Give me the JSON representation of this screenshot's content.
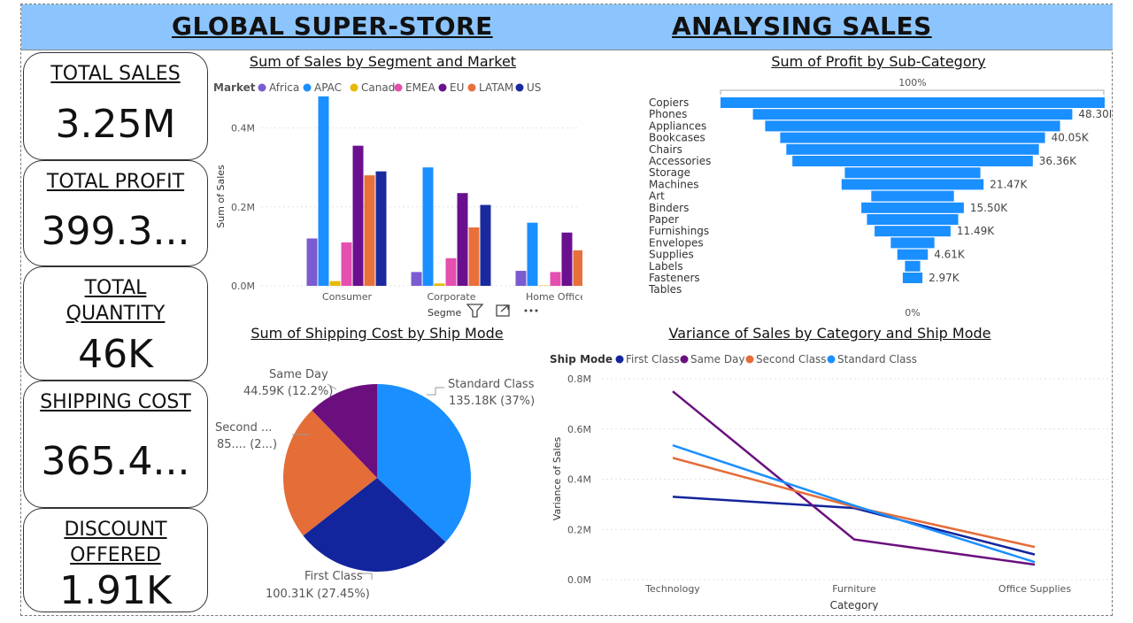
{
  "header": {
    "left_title": "GLOBAL SUPER-STORE ",
    "right_title": " ANALYSING SALES "
  },
  "kpis": [
    {
      "label": "TOTAL SALES",
      "value": "3.25M"
    },
    {
      "label": "TOTAL PROFIT",
      "value": "399.3..."
    },
    {
      "label": "TOTAL QUANTITY",
      "value": "46K"
    },
    {
      "label": "SHIPPING COST",
      "value": "365.4..."
    },
    {
      "label": "DISCOUNT OFFERED",
      "value": "1.91K"
    }
  ],
  "colors": {
    "header_bg": "#8cc5fe",
    "Africa": "#7b5bd0",
    "APAC": "#1a8fff",
    "Canada": "#e6b800",
    "EMEA": "#e44fb0",
    "EU": "#6a0f8e",
    "LATAM": "#e8703a",
    "US": "#1a2a9c"
  },
  "visual_header_icons": [
    "filter-icon",
    "focus-mode-icon",
    "more-options-icon"
  ],
  "chart_data": [
    {
      "type": "bar",
      "title": "Sum of Sales by Segment and Market",
      "xlabel": "Segme",
      "ylabel": "Sum of Sales",
      "legend_title": "Market",
      "legend_position": "top-left",
      "categories": [
        "Consumer",
        "Corporate",
        "Home Office"
      ],
      "yticks": [
        "0.0M",
        "0.2M",
        "0.4M"
      ],
      "ylim": [
        0,
        0.5
      ],
      "series": [
        {
          "name": "Africa",
          "color": "#7b5bd0",
          "values": [
            0.12,
            0.035,
            0.038
          ]
        },
        {
          "name": "APAC",
          "color": "#1a8fff",
          "values": [
            0.48,
            0.3,
            0.16
          ]
        },
        {
          "name": "Canada",
          "color": "#e6b800",
          "values": [
            0.012,
            0.006,
            0.001
          ]
        },
        {
          "name": "EMEA",
          "color": "#e44fb0",
          "values": [
            0.11,
            0.07,
            0.035
          ]
        },
        {
          "name": "EU",
          "color": "#6a0f8e",
          "values": [
            0.355,
            0.235,
            0.135
          ]
        },
        {
          "name": "LATAM",
          "color": "#e8703a",
          "values": [
            0.28,
            0.148,
            0.09
          ]
        },
        {
          "name": "US",
          "color": "#1a2a9c",
          "values": [
            0.29,
            0.205,
            0.125
          ]
        }
      ]
    },
    {
      "type": "funnel",
      "title": "Sum of Profit by Sub-Category",
      "top_label": "100%",
      "bottom_label": "0%",
      "color": "#1a8fff",
      "categories": [
        "Copiers",
        "Phones",
        "Appliances",
        "Bookcases",
        "Chairs",
        "Accessories",
        "Storage",
        "Machines",
        "Art",
        "Binders",
        "Paper",
        "Furnishings",
        "Envelopes",
        "Supplies",
        "Labels",
        "Fasteners",
        "Tables"
      ],
      "values": [
        58.1,
        48.3,
        44.6,
        40.05,
        38.2,
        36.36,
        20.5,
        21.47,
        12.5,
        15.5,
        13.8,
        11.49,
        6.6,
        4.61,
        2.3,
        2.97,
        0
      ],
      "data_labels": [
        "",
        "48.30K",
        "",
        "40.05K",
        "",
        "36.36K",
        "",
        "21.47K",
        "",
        "15.50K",
        "",
        "11.49K",
        "",
        "4.61K",
        "",
        "2.97K",
        ""
      ]
    },
    {
      "type": "pie",
      "title": "Sum of Shipping Cost by Ship Mode",
      "slices": [
        {
          "name": "Standard Class",
          "value": 135.18,
          "label": "135.18K (37%)",
          "color": "#1a8fff"
        },
        {
          "name": "First Class",
          "value": 100.31,
          "label": "100.31K (27.45%)",
          "color": "#13259c"
        },
        {
          "name": "Second ...",
          "value": 85.4,
          "label": "85.... (2...)",
          "color": "#e46d38"
        },
        {
          "name": "Same Day",
          "value": 44.59,
          "label": "44.59K (12.2%)",
          "color": "#6b0f7e"
        }
      ]
    },
    {
      "type": "line",
      "title": "Variance of Sales by Category and Ship Mode",
      "xlabel": "Category",
      "ylabel": "Variance of Sales",
      "legend_title": "Ship Mode",
      "legend_position": "top-left",
      "categories": [
        "Technology",
        "Furniture",
        "Office Supplies"
      ],
      "yticks": [
        "0.0M",
        "0.2M",
        "0.4M",
        "0.6M",
        "0.8M"
      ],
      "ylim": [
        0,
        0.8
      ],
      "series": [
        {
          "name": "First Class",
          "color": "#13259c",
          "values": [
            0.33,
            0.285,
            0.1
          ]
        },
        {
          "name": "Same Day",
          "color": "#6b0f7e",
          "values": [
            0.75,
            0.16,
            0.06
          ]
        },
        {
          "name": "Second Class",
          "color": "#e46d38",
          "values": [
            0.485,
            0.29,
            0.13
          ]
        },
        {
          "name": "Standard Class",
          "color": "#1a8fff",
          "values": [
            0.535,
            0.295,
            0.07
          ]
        }
      ]
    }
  ]
}
